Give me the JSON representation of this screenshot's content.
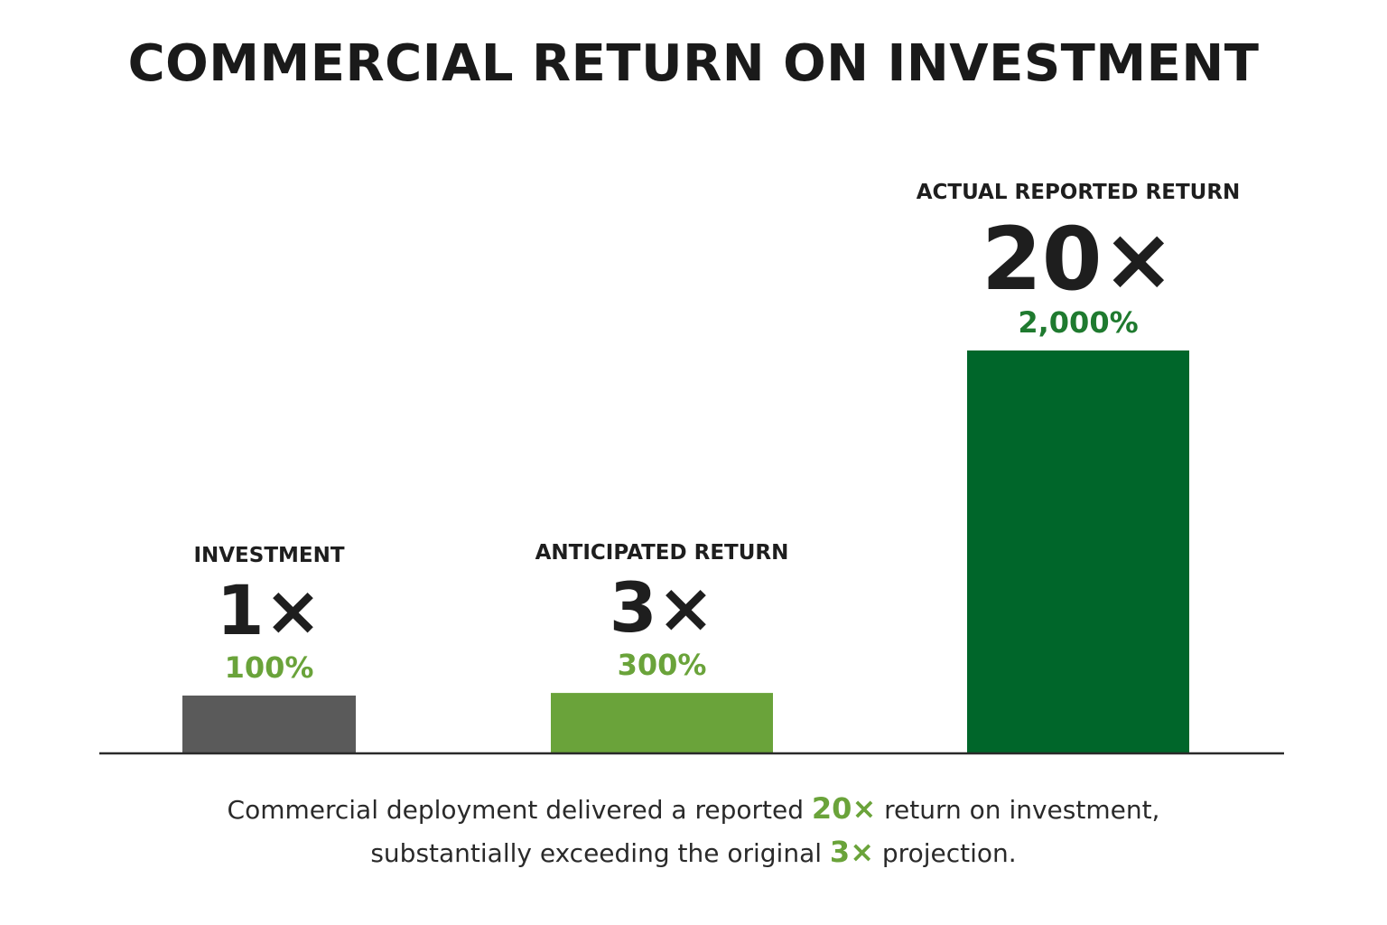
{
  "title": "COMMERCIAL RETURN ON INVESTMENT",
  "colors": {
    "investment": "#5a5a5a",
    "anticipated": "#6aa33a",
    "actual": "#00662a",
    "percent_light": "#6aa33a",
    "percent_dark": "#1f7a2f",
    "text": "#1e1e1e"
  },
  "chart_data": {
    "type": "bar",
    "categories": [
      "INVESTMENT",
      "ANTICIPATED RETURN",
      "ACTUAL REPORTED RETURN"
    ],
    "values": [
      1,
      3,
      20
    ],
    "multiplier_labels": [
      "1×",
      "3×",
      "20×"
    ],
    "percent_labels": [
      "100%",
      "300%",
      "2,000%"
    ],
    "title": "COMMERCIAL RETURN ON INVESTMENT",
    "xlabel": "",
    "ylabel": "",
    "grid": false
  },
  "caption": {
    "line1_a": "Commercial deployment delivered a reported ",
    "line1_hl": "20×",
    "line1_b": " return on investment,",
    "line2_a": "substantially exceeding the original ",
    "line2_hl": "3×",
    "line2_b": " projection."
  }
}
